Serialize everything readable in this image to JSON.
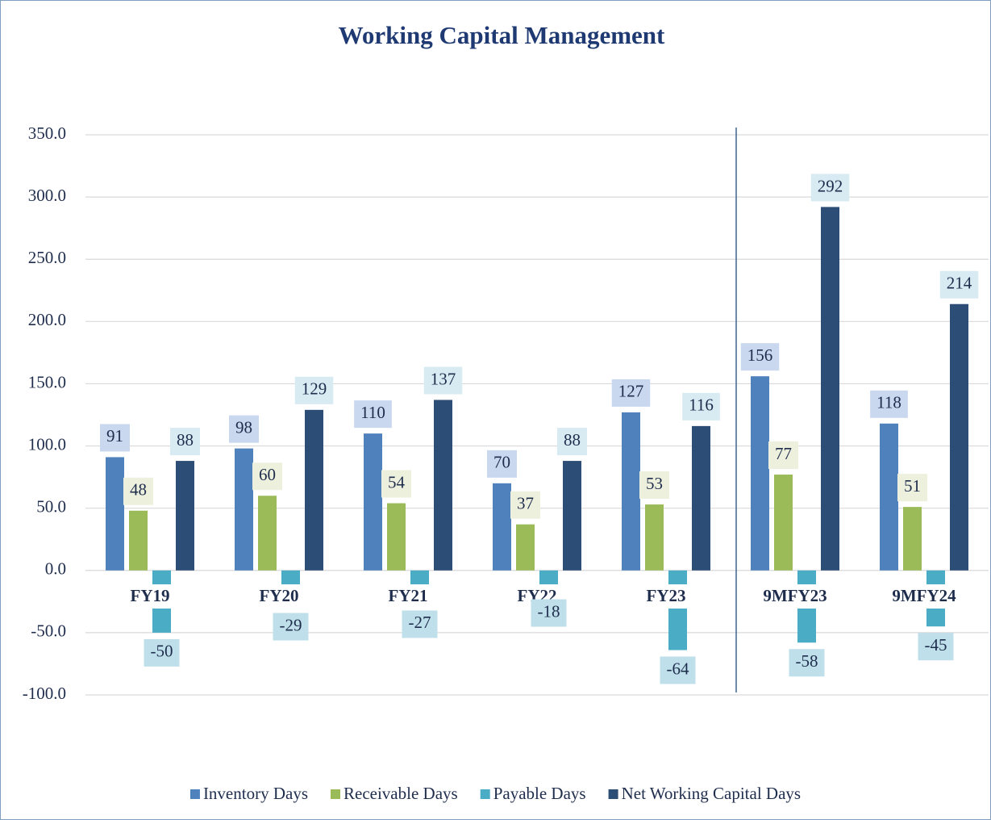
{
  "chart_data": {
    "type": "bar",
    "title": "Working Capital Management",
    "categories": [
      "FY19",
      "FY20",
      "FY21",
      "FY22",
      "FY23",
      "9MFY23",
      "9MFY24"
    ],
    "series": [
      {
        "name": "Inventory Days",
        "color": "#4f81bd",
        "label_bg": "#c9d7ef",
        "values": [
          91,
          98,
          110,
          70,
          127,
          156,
          118
        ]
      },
      {
        "name": "Receivable Days",
        "color": "#9bbb59",
        "label_bg": "#eef0de",
        "values": [
          48,
          60,
          54,
          37,
          53,
          77,
          51
        ]
      },
      {
        "name": "Payable Days",
        "color": "#4bacc6",
        "label_bg": "#bfe0ea",
        "values": [
          -50,
          -29,
          -27,
          -18,
          -64,
          -58,
          -45
        ]
      },
      {
        "name": "Net Working Capital Days",
        "color": "#2c4d75",
        "label_bg": "#d8ebf2",
        "values": [
          88,
          129,
          137,
          88,
          116,
          292,
          214
        ]
      }
    ],
    "ylim": [
      -100,
      350
    ],
    "yticks": [
      {
        "value": -100,
        "label": "-100.0"
      },
      {
        "value": -50,
        "label": "-50.0"
      },
      {
        "value": 0,
        "label": "0.0"
      },
      {
        "value": 50,
        "label": "50.0"
      },
      {
        "value": 100,
        "label": "100.0"
      },
      {
        "value": 150,
        "label": "150.0"
      },
      {
        "value": 200,
        "label": "200.0"
      },
      {
        "value": 250,
        "label": "250.0"
      },
      {
        "value": 300,
        "label": "300.0"
      },
      {
        "value": 350,
        "label": "350.0"
      }
    ],
    "grid": true,
    "legend": "bottom"
  }
}
